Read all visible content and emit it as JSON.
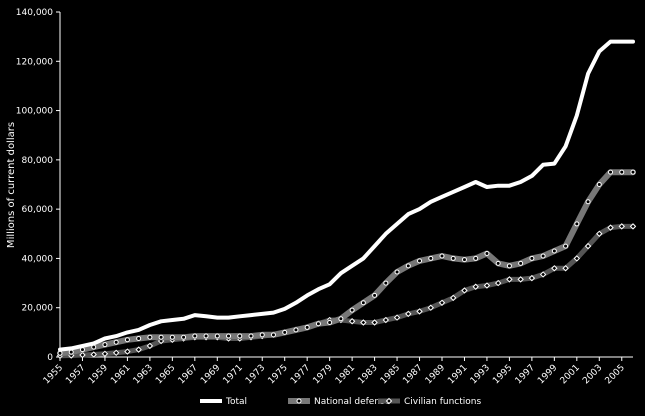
{
  "chart_data": {
    "type": "line",
    "title": "",
    "xlabel": "",
    "ylabel": "Millions of current dollars",
    "x": [
      1955,
      1956,
      1957,
      1958,
      1959,
      1960,
      1961,
      1962,
      1963,
      1964,
      1965,
      1966,
      1967,
      1968,
      1969,
      1970,
      1971,
      1972,
      1973,
      1974,
      1975,
      1976,
      1977,
      1978,
      1979,
      1980,
      1981,
      1982,
      1983,
      1984,
      1985,
      1986,
      1987,
      1988,
      1989,
      1990,
      1991,
      1992,
      1993,
      1994,
      1995,
      1996,
      1997,
      1998,
      1999,
      2000,
      2001,
      2002,
      2003,
      2004,
      2005,
      2006
    ],
    "xticks": [
      1955,
      1957,
      1959,
      1961,
      1963,
      1965,
      1967,
      1969,
      1971,
      1973,
      1975,
      1977,
      1979,
      1981,
      1983,
      1985,
      1987,
      1989,
      1991,
      1993,
      1995,
      1997,
      1999,
      2001,
      2003,
      2005
    ],
    "xlim": [
      1955,
      2006
    ],
    "ylim": [
      0,
      140000
    ],
    "yticks": [
      0,
      20000,
      40000,
      60000,
      80000,
      100000,
      120000,
      140000
    ],
    "ytick_labels": [
      "0",
      "20,000",
      "40,000",
      "60,000",
      "80,000",
      "100,000",
      "120,000",
      "140,000"
    ],
    "grid": false,
    "legend_position": "bottom",
    "series": [
      {
        "name": "Total",
        "color": "#ffffff",
        "values": [
          3000,
          3500,
          4500,
          5500,
          7500,
          8500,
          10000,
          11000,
          13000,
          14500,
          15000,
          15500,
          17000,
          16500,
          16000,
          16000,
          16500,
          17000,
          17500,
          18000,
          19500,
          22000,
          25000,
          27500,
          29500,
          34000,
          37000,
          40000,
          45000,
          50000,
          54000,
          58000,
          60000,
          63000,
          65000,
          67000,
          69000,
          71000,
          69000,
          69500,
          69500,
          71000,
          73500,
          78000,
          78500,
          85500,
          98000,
          115000,
          124000,
          128000,
          128000,
          128000
        ]
      },
      {
        "name": "National defense",
        "color": "#777777",
        "values": [
          1500,
          2000,
          3000,
          4000,
          5000,
          6000,
          7000,
          7500,
          8000,
          8000,
          8000,
          8000,
          8500,
          8500,
          8500,
          8500,
          8500,
          8500,
          9000,
          9000,
          10000,
          11000,
          12000,
          13500,
          14000,
          15500,
          19000,
          22000,
          25000,
          30000,
          34500,
          37000,
          39000,
          40000,
          41000,
          40000,
          39500,
          40000,
          42000,
          38000,
          37000,
          38000,
          40000,
          41000,
          43000,
          45000,
          54000,
          63000,
          70000,
          75000,
          75000,
          75000
        ]
      },
      {
        "name": "Civilian functions",
        "color": "#555555",
        "values": [
          500,
          600,
          800,
          1000,
          1300,
          1700,
          2200,
          3000,
          4500,
          6500,
          7000,
          7500,
          8000,
          8000,
          8000,
          7500,
          7500,
          8000,
          8500,
          9000,
          10000,
          11000,
          12000,
          13500,
          15000,
          15000,
          14500,
          14000,
          14000,
          15000,
          16000,
          17500,
          18500,
          20000,
          22000,
          24000,
          27000,
          28500,
          29000,
          30000,
          31500,
          31500,
          32000,
          33500,
          36000,
          36000,
          40000,
          45000,
          50000,
          52500,
          53000,
          53000
        ]
      }
    ]
  }
}
